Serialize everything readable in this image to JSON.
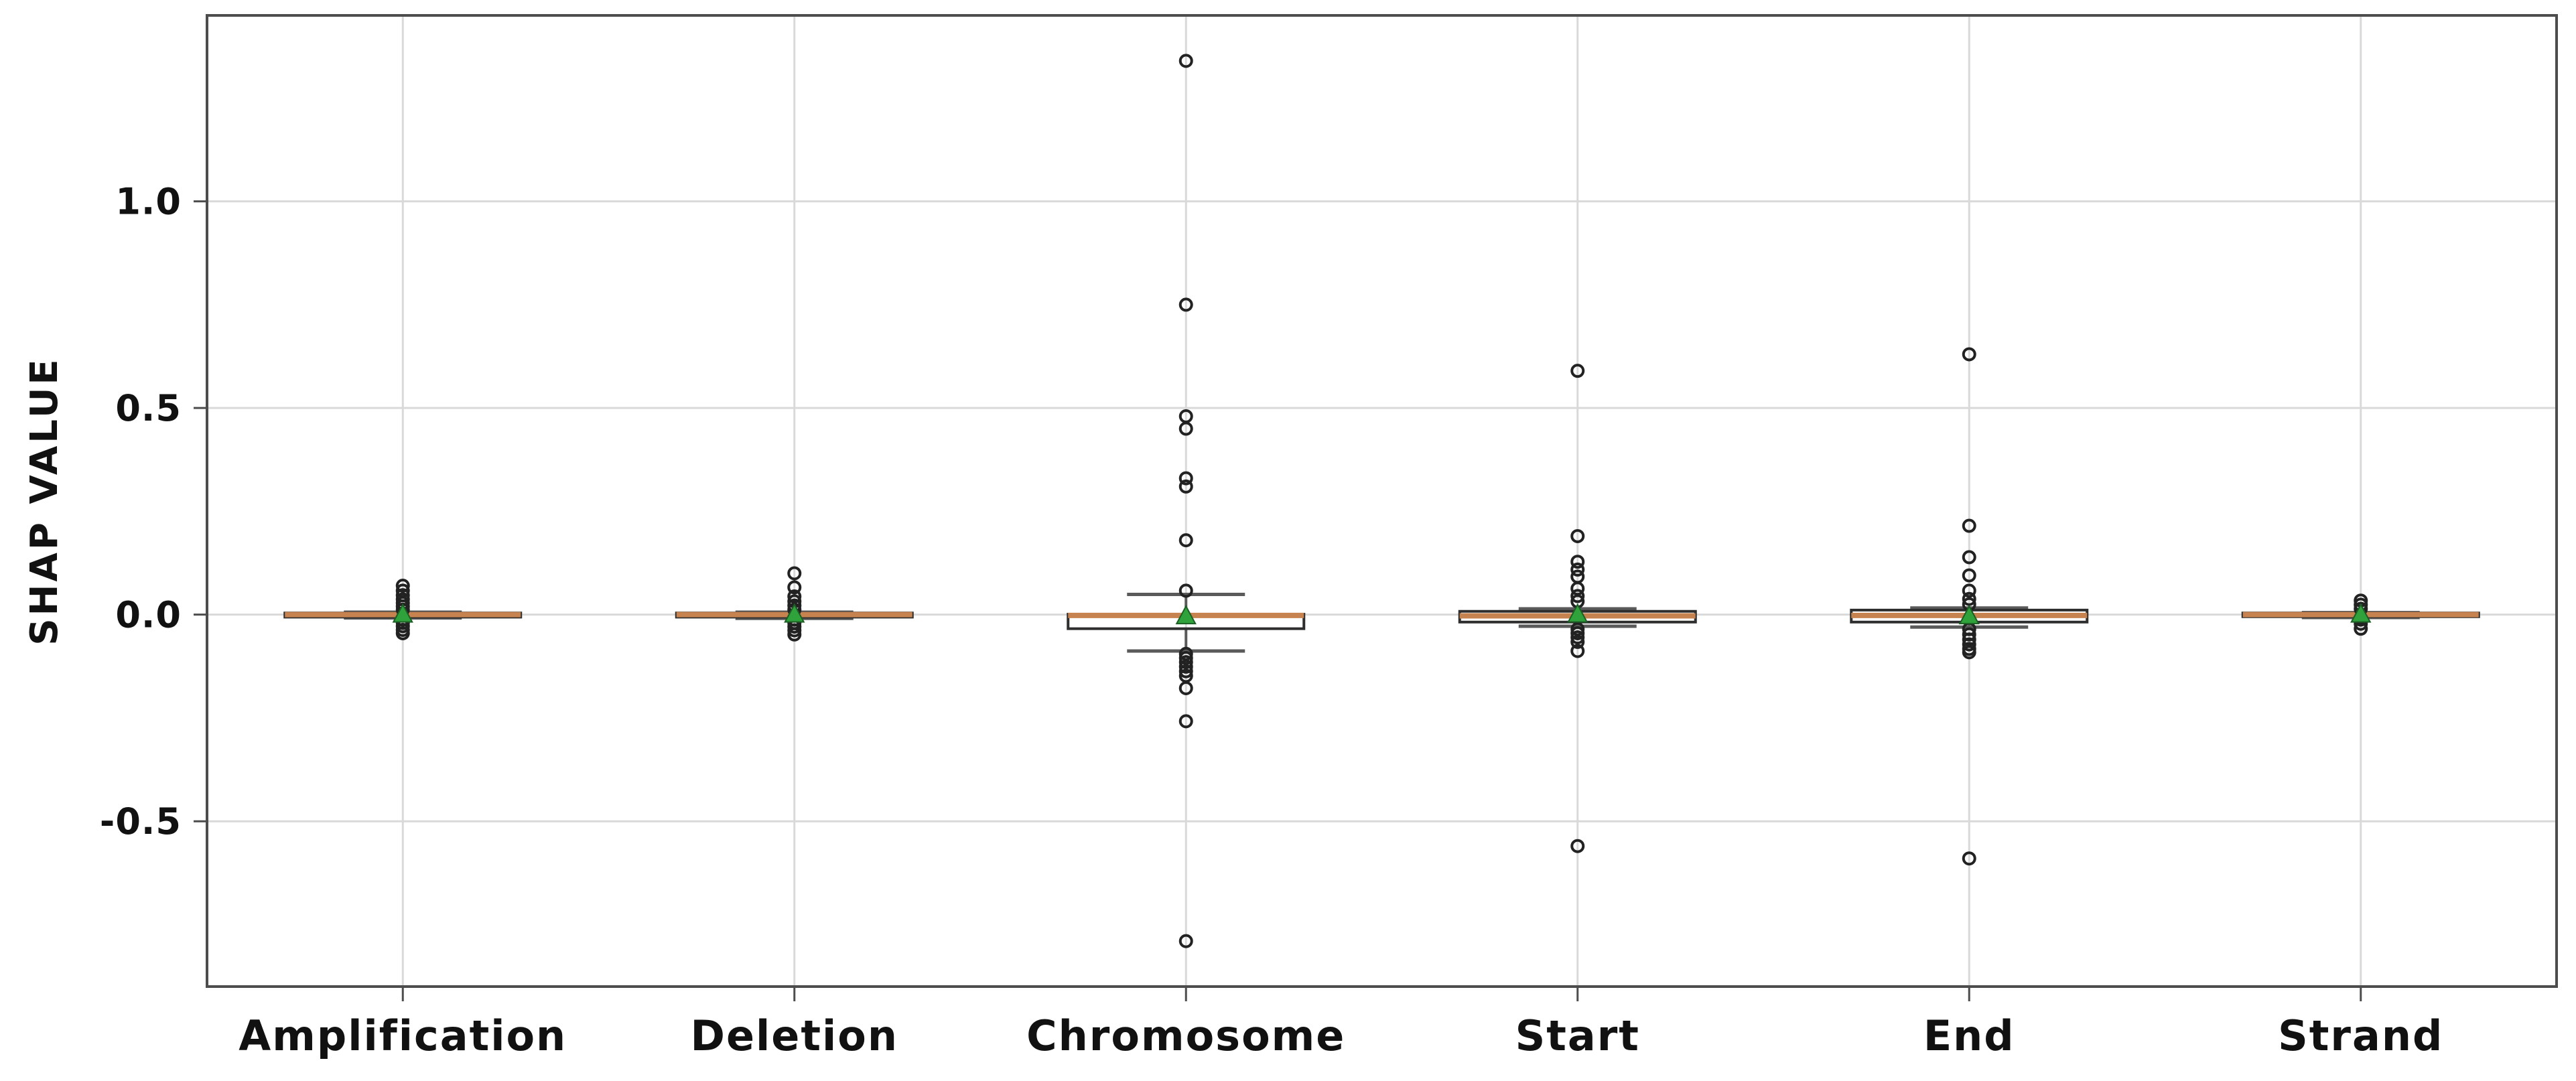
{
  "figure_title": "",
  "chart_data": {
    "type": "box",
    "title": "",
    "xlabel": "",
    "ylabel": "SHAP VALUE",
    "categories": [
      "Amplification",
      "Deletion",
      "Chromosome",
      "Start",
      "End",
      "Strand"
    ],
    "yticks": [
      -0.5,
      0.0,
      0.5,
      1.0
    ],
    "ytick_labels": [
      "-0.5",
      "0.0",
      "0.5",
      "1.0"
    ],
    "ylim": [
      -0.9,
      1.45
    ],
    "grid": true,
    "legend": "none",
    "series": [
      {
        "name": "Amplification",
        "q1": -0.006,
        "median": 0.0,
        "q3": 0.004,
        "whisker_low": -0.008,
        "whisker_high": 0.006,
        "mean": 0.0,
        "outliers": [
          0.07,
          0.058,
          0.047,
          0.037,
          0.028,
          0.02,
          0.012,
          -0.012,
          -0.02,
          -0.028,
          -0.037,
          -0.045
        ]
      },
      {
        "name": "Deletion",
        "q1": -0.006,
        "median": 0.0,
        "q3": 0.004,
        "whisker_low": -0.009,
        "whisker_high": 0.006,
        "mean": 0.0,
        "outliers": [
          0.1,
          0.066,
          0.044,
          0.032,
          0.022,
          0.012,
          -0.012,
          -0.02,
          -0.029,
          -0.038,
          -0.048
        ]
      },
      {
        "name": "Chromosome",
        "q1": -0.034,
        "median": -0.002,
        "q3": 0.001,
        "whisker_low": -0.088,
        "whisker_high": 0.049,
        "mean": -0.004,
        "outliers": [
          1.34,
          0.75,
          0.48,
          0.45,
          0.33,
          0.31,
          0.18,
          0.058,
          -0.095,
          -0.105,
          -0.115,
          -0.126,
          -0.137,
          -0.148,
          -0.178,
          -0.258,
          -0.79
        ]
      },
      {
        "name": "Start",
        "q1": -0.018,
        "median": -0.003,
        "q3": 0.008,
        "whisker_low": -0.028,
        "whisker_high": 0.014,
        "mean": 0.0,
        "outliers": [
          0.59,
          0.19,
          0.128,
          0.109,
          0.092,
          0.063,
          0.045,
          0.032,
          -0.035,
          -0.045,
          -0.055,
          -0.066,
          -0.088,
          -0.56
        ]
      },
      {
        "name": "End",
        "q1": -0.018,
        "median": -0.002,
        "q3": 0.011,
        "whisker_low": -0.03,
        "whisker_high": 0.016,
        "mean": -0.004,
        "outliers": [
          0.63,
          0.215,
          0.139,
          0.095,
          0.058,
          0.038,
          0.025,
          -0.035,
          -0.048,
          -0.06,
          -0.072,
          -0.083,
          -0.091,
          -0.59
        ]
      },
      {
        "name": "Strand",
        "q1": -0.005,
        "median": 0.0,
        "q3": 0.004,
        "whisker_low": -0.007,
        "whisker_high": 0.005,
        "mean": 0.0,
        "outliers": [
          0.034,
          0.024,
          0.014,
          -0.012,
          -0.022,
          -0.034
        ]
      }
    ],
    "colors": {
      "median_line": "#c6834f",
      "box_edge": "#2e2e2e",
      "whisker": "#5a5a5a",
      "whisker_cap": "#5a5a5a",
      "outlier_edge": "#222222",
      "mean_marker_fill": "#2fa23c",
      "mean_marker_edge": "#1c5f24",
      "grid_line": "#d9d9d9",
      "axis_border": "#4d4d4d",
      "text": "#111111",
      "background": "#ffffff"
    }
  }
}
